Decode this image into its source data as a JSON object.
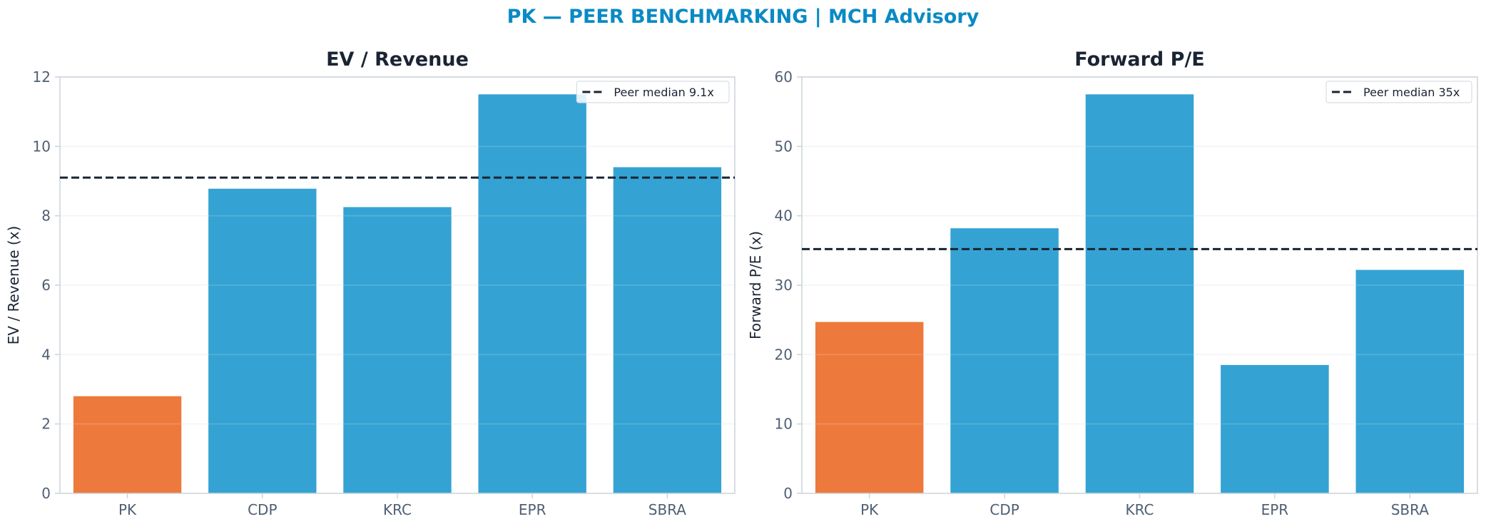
{
  "suptitle": "PK — PEER BENCHMARKING | MCH Advisory",
  "colors": {
    "title_accent": "#0a8ac4",
    "highlight_bar": "#ed7a3c",
    "peer_bar": "#34a3d3",
    "median_line": "#1a2433",
    "axis_spine": "#ccd3da",
    "tick_text": "#4f5f73",
    "grid": "#eef1f4"
  },
  "chart_data": [
    {
      "type": "bar",
      "title": "EV / Revenue",
      "xlabel": "",
      "ylabel": "EV / Revenue (x)",
      "categories": [
        "PK",
        "CDP",
        "KRC",
        "EPR",
        "SBRA"
      ],
      "values": [
        2.8,
        8.78,
        8.25,
        11.5,
        9.4
      ],
      "highlight_category": "PK",
      "ylim": [
        0,
        12
      ],
      "yticks": [
        "0",
        "2",
        "4",
        "6",
        "8",
        "10",
        "12"
      ],
      "ytick_values": [
        0,
        2,
        4,
        6,
        8,
        10,
        12
      ],
      "reference_line": {
        "label": "Peer median 9.1x",
        "value": 9.1,
        "style": "dashed"
      },
      "grid": true,
      "legend_position": "top-right"
    },
    {
      "type": "bar",
      "title": "Forward P/E",
      "xlabel": "",
      "ylabel": "Forward P/E (x)",
      "categories": [
        "PK",
        "CDP",
        "KRC",
        "EPR",
        "SBRA"
      ],
      "values": [
        24.7,
        38.2,
        57.5,
        18.5,
        32.2
      ],
      "highlight_category": "PK",
      "ylim": [
        0,
        60
      ],
      "yticks": [
        "0",
        "10",
        "20",
        "30",
        "40",
        "50",
        "60"
      ],
      "ytick_values": [
        0,
        10,
        20,
        30,
        40,
        50,
        60
      ],
      "reference_line": {
        "label": "Peer median 35x",
        "value": 35.2,
        "style": "dashed"
      },
      "grid": true,
      "legend_position": "top-right"
    }
  ]
}
